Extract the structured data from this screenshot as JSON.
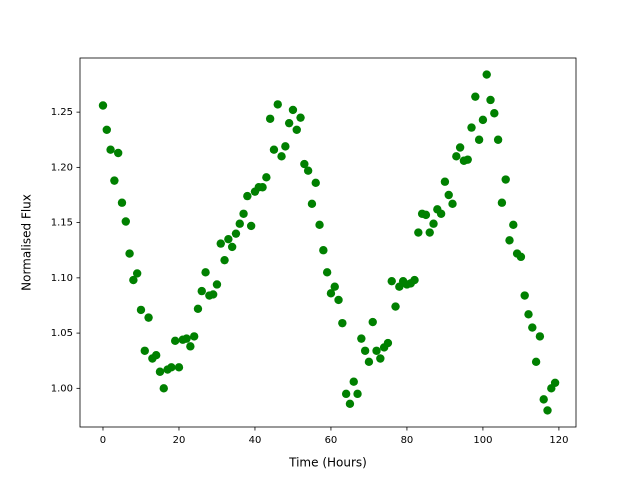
{
  "chart_data": {
    "type": "scatter",
    "xlabel": "Time (Hours)",
    "ylabel": "Normalised Flux",
    "color": "#008000",
    "grid": false,
    "xlim": [
      -6.05,
      124.5
    ],
    "ylim": [
      0.965,
      1.299
    ],
    "xticks": [
      0,
      20,
      40,
      60,
      80,
      100,
      120
    ],
    "yticks": [
      {
        "value": 1,
        "label": "1.00"
      },
      1.05,
      {
        "value": 1.1,
        "label": "1.10"
      },
      1.15,
      {
        "value": 1.2,
        "label": "1.20"
      },
      1.25
    ],
    "x": [
      0,
      1,
      2,
      3,
      4,
      5,
      6,
      7,
      8,
      9,
      10,
      11,
      12,
      13,
      14,
      15,
      16,
      17,
      18,
      19,
      20,
      21,
      22,
      23,
      24,
      25,
      26,
      27,
      28,
      29,
      30,
      31,
      32,
      33,
      34,
      35,
      36,
      37,
      38,
      39,
      40,
      41,
      42,
      43,
      44,
      45,
      46,
      47,
      48,
      49,
      50,
      51,
      52,
      53,
      54,
      55,
      56,
      57,
      58,
      59,
      60,
      61,
      62,
      63,
      64,
      65,
      66,
      67,
      68,
      69,
      70,
      71,
      72,
      73,
      74,
      75,
      76,
      77,
      78,
      79,
      80,
      81,
      82,
      83,
      84,
      85,
      86,
      87,
      88,
      89,
      90,
      91,
      92,
      93,
      94,
      95,
      96,
      97,
      98,
      99,
      100,
      101,
      102,
      103,
      104,
      105,
      106,
      107,
      108,
      109,
      110,
      111,
      112,
      113,
      114,
      115,
      116,
      117,
      118,
      119
    ],
    "values": [
      1.256,
      1.234,
      1.216,
      1.188,
      1.213,
      1.168,
      1.151,
      1.122,
      1.098,
      1.104,
      1.071,
      1.034,
      1.064,
      1.027,
      1.03,
      1.015,
      1.0,
      1.017,
      1.019,
      1.043,
      1.019,
      1.044,
      1.045,
      1.038,
      1.047,
      1.072,
      1.088,
      1.105,
      1.084,
      1.085,
      1.094,
      1.131,
      1.116,
      1.135,
      1.128,
      1.14,
      1.149,
      1.158,
      1.174,
      1.147,
      1.178,
      1.182,
      1.182,
      1.191,
      1.244,
      1.216,
      1.257,
      1.21,
      1.219,
      1.24,
      1.252,
      1.234,
      1.245,
      1.203,
      1.197,
      1.167,
      1.186,
      1.148,
      1.125,
      1.105,
      1.086,
      1.092,
      1.08,
      1.059,
      0.995,
      0.986,
      1.006,
      0.995,
      1.045,
      1.034,
      1.024,
      1.06,
      1.034,
      1.027,
      1.037,
      1.041,
      1.097,
      1.074,
      1.092,
      1.097,
      1.094,
      1.095,
      1.098,
      1.141,
      1.158,
      1.157,
      1.141,
      1.149,
      1.162,
      1.158,
      1.187,
      1.175,
      1.167,
      1.21,
      1.218,
      1.206,
      1.207,
      1.236,
      1.264,
      1.225,
      1.243,
      1.284,
      1.261,
      1.249,
      1.225,
      1.168,
      1.189,
      1.134,
      1.148,
      1.122,
      1.119,
      1.084,
      1.067,
      1.055,
      1.024,
      1.047,
      0.99,
      0.98,
      1.0,
      1.005
    ]
  }
}
